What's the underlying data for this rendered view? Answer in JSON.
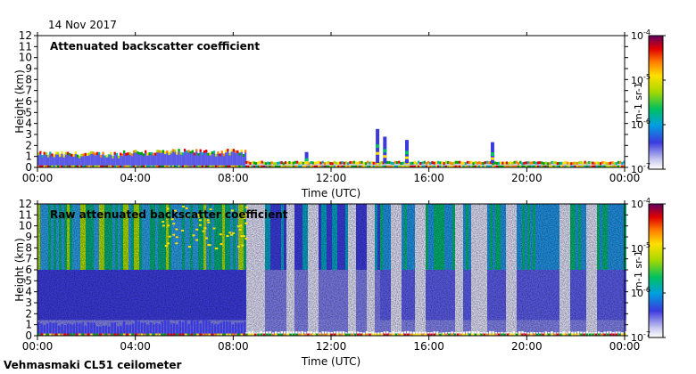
{
  "date": "14 Nov 2017",
  "instrument": "Vehmasmaki CL51 ceilometer",
  "chart_data": [
    {
      "type": "heatmap",
      "title": "Attenuated backscatter coefficient",
      "xlabel": "Time (UTC)",
      "ylabel": "Height (km)",
      "x_ticks": [
        "00:00",
        "04:00",
        "08:00",
        "12:00",
        "16:00",
        "20:00",
        "00:00"
      ],
      "xlim_hours": [
        0,
        24
      ],
      "y_ticks": [
        "0",
        "1",
        "2",
        "3",
        "4",
        "5",
        "6",
        "7",
        "8",
        "9",
        "10",
        "11",
        "12"
      ],
      "ylim": [
        0,
        12
      ],
      "colorbar": {
        "label": "m-1 sr-1",
        "scale": "log",
        "range": [
          1e-07,
          0.0001
        ],
        "tick_bases": [
          "10",
          "10",
          "10",
          "10"
        ],
        "tick_exponents": [
          "-7",
          "-6",
          "-5",
          "-4"
        ]
      },
      "features": {
        "boundary_layer": [
          {
            "start_h": 0.0,
            "end_h": 3.5,
            "top_km": 1.2
          },
          {
            "start_h": 3.5,
            "end_h": 8.5,
            "top_km": 1.4
          },
          {
            "start_h": 8.5,
            "end_h": 24.0,
            "top_km": 0.4
          }
        ],
        "cloud_columns": [
          {
            "time_h": 11.0,
            "top_km": 1.4
          },
          {
            "time_h": 13.9,
            "top_km": 3.5
          },
          {
            "time_h": 14.2,
            "top_km": 2.8
          },
          {
            "time_h": 15.1,
            "top_km": 2.5
          },
          {
            "time_h": 18.6,
            "top_km": 2.3
          }
        ]
      }
    },
    {
      "type": "heatmap",
      "title": "Raw attenuated backscatter coefficient",
      "xlabel": "Time (UTC)",
      "ylabel": "Height (km)",
      "x_ticks": [
        "00:00",
        "04:00",
        "08:00",
        "12:00",
        "16:00",
        "20:00",
        "00:00"
      ],
      "xlim_hours": [
        0,
        24
      ],
      "y_ticks": [
        "0",
        "1",
        "2",
        "3",
        "4",
        "5",
        "6",
        "7",
        "8",
        "9",
        "10",
        "11",
        "12"
      ],
      "ylim": [
        0,
        12
      ],
      "colorbar": {
        "label": "m-1 sr-1",
        "scale": "log",
        "range": [
          1e-07,
          0.0001
        ],
        "tick_bases": [
          "10",
          "10",
          "10",
          "10"
        ],
        "tick_exponents": [
          "-7",
          "-6",
          "-5",
          "-4"
        ]
      },
      "features": {
        "noise_field_km": [
          0,
          12
        ],
        "clear_bands_h": [
          8.7,
          9.1,
          10.3,
          11.2,
          12.8,
          13.6,
          14.6,
          15.6,
          17.2,
          17.8,
          18.2,
          19.3,
          21.5,
          22.6
        ]
      }
    }
  ]
}
